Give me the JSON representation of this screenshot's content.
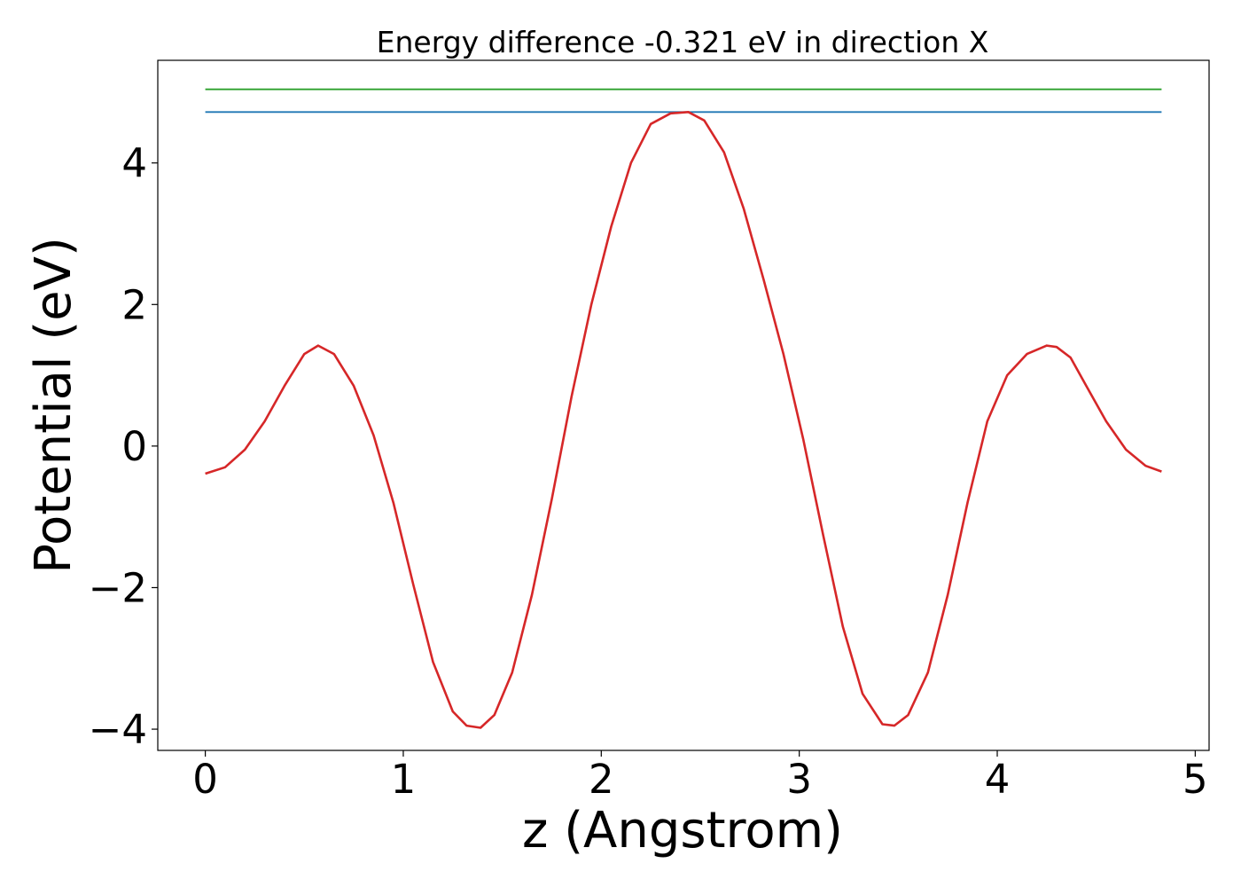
{
  "chart_data": {
    "type": "line",
    "title": "Energy difference -0.321 eV in direction X",
    "xlabel": "z (Angstrom)",
    "ylabel": "Potential (eV)",
    "xlim": [
      -0.24,
      5.07
    ],
    "ylim": [
      -4.3,
      5.45
    ],
    "xticks": [
      0,
      1,
      2,
      3,
      4,
      5
    ],
    "xtick_labels": [
      "0",
      "1",
      "2",
      "3",
      "4",
      "5"
    ],
    "yticks": [
      -4,
      -2,
      0,
      2,
      4
    ],
    "ytick_labels": [
      "−4",
      "−2",
      "0",
      "2",
      "4"
    ],
    "grid": false,
    "legend": "none",
    "series": [
      {
        "color": "#2ca02c",
        "x": [
          0,
          4.83
        ],
        "y": [
          5.04,
          5.04
        ]
      },
      {
        "color": "#1f77b4",
        "x": [
          0,
          4.83
        ],
        "y": [
          4.72,
          4.72
        ]
      },
      {
        "color": "#d62728",
        "x": [
          0,
          0.1,
          0.2,
          0.3,
          0.4,
          0.5,
          0.57,
          0.65,
          0.75,
          0.85,
          0.95,
          1.05,
          1.15,
          1.25,
          1.32,
          1.39,
          1.46,
          1.55,
          1.65,
          1.75,
          1.85,
          1.95,
          2.05,
          2.15,
          2.25,
          2.35,
          2.44,
          2.52,
          2.62,
          2.72,
          2.82,
          2.92,
          3.02,
          3.12,
          3.22,
          3.32,
          3.42,
          3.48,
          3.55,
          3.65,
          3.75,
          3.85,
          3.95,
          4.05,
          4.15,
          4.25,
          4.3,
          4.37,
          4.45,
          4.55,
          4.65,
          4.75,
          4.83
        ],
        "y": [
          -0.39,
          -0.3,
          -0.05,
          0.35,
          0.85,
          1.3,
          1.42,
          1.3,
          0.85,
          0.15,
          -0.8,
          -1.95,
          -3.05,
          -3.75,
          -3.95,
          -3.98,
          -3.8,
          -3.2,
          -2.1,
          -0.75,
          0.7,
          2.0,
          3.1,
          4.0,
          4.55,
          4.7,
          4.72,
          4.6,
          4.15,
          3.35,
          2.35,
          1.3,
          0.1,
          -1.25,
          -2.55,
          -3.5,
          -3.93,
          -3.95,
          -3.8,
          -3.2,
          -2.1,
          -0.8,
          0.35,
          1.0,
          1.3,
          1.42,
          1.4,
          1.25,
          0.85,
          0.35,
          -0.05,
          -0.28,
          -0.36
        ]
      }
    ]
  }
}
